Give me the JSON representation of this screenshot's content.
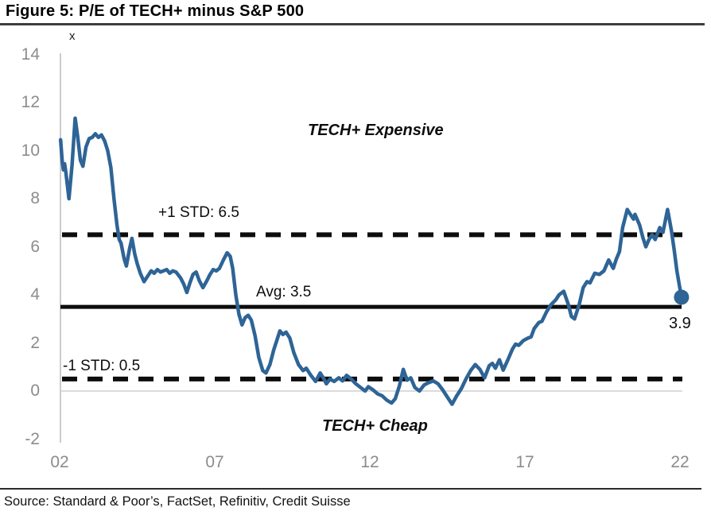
{
  "title": "Figure 5: P/E of TECH+ minus S&P 500",
  "source": "Source: Standard & Poor’s, FactSet, Refinitiv, Credit Suisse",
  "chart_data": {
    "type": "line",
    "title": "Figure 5: P/E of TECH+ minus S&P 500",
    "unit_label": "x",
    "xlabel": "",
    "ylabel": "",
    "grid": "zero-line only",
    "legend_position": "none",
    "xlim": [
      2002,
      2022.6
    ],
    "ylim": [
      -2,
      14
    ],
    "y_axis": {
      "ticks": [
        14,
        12,
        10,
        8,
        6,
        4,
        2,
        0,
        -2
      ]
    },
    "x_axis": {
      "ticks": [
        {
          "label": "02",
          "year": 2002
        },
        {
          "label": "07",
          "year": 2007
        },
        {
          "label": "12",
          "year": 2012
        },
        {
          "label": "17",
          "year": 2017
        },
        {
          "label": "22",
          "year": 2022
        }
      ]
    },
    "reference_lines": {
      "plus1_std": {
        "label": "+1 STD: 6.5",
        "value": 6.5,
        "style": "dashed"
      },
      "avg": {
        "label": "Avg: 3.5",
        "value": 3.5,
        "style": "solid"
      },
      "minus1_std": {
        "label": "-1 STD: 0.5",
        "value": 0.5,
        "style": "dashed"
      }
    },
    "annotations": {
      "upper_zone": "TECH+ Expensive",
      "lower_zone": "TECH+ Cheap",
      "last_value_label": "3.9"
    },
    "colors": {
      "line": "#2e6496",
      "marker": "#2e6496",
      "reference": "#0d0d0d",
      "axis": "#bcbcbc",
      "zero_line": "#cfcfcf",
      "tick_text": "#8c8c8c"
    },
    "series": [
      {
        "name": "P/E of TECH+ minus S&P 500 (x)",
        "last_value": 3.9,
        "points": [
          [
            2002.03,
            10.45
          ],
          [
            2002.08,
            9.6
          ],
          [
            2002.12,
            9.2
          ],
          [
            2002.16,
            9.45
          ],
          [
            2002.2,
            9.1
          ],
          [
            2002.3,
            8.0
          ],
          [
            2002.4,
            9.4
          ],
          [
            2002.5,
            11.35
          ],
          [
            2002.58,
            10.6
          ],
          [
            2002.67,
            9.6
          ],
          [
            2002.75,
            9.35
          ],
          [
            2002.85,
            10.15
          ],
          [
            2002.95,
            10.5
          ],
          [
            2003.05,
            10.55
          ],
          [
            2003.15,
            10.7
          ],
          [
            2003.25,
            10.55
          ],
          [
            2003.35,
            10.65
          ],
          [
            2003.45,
            10.4
          ],
          [
            2003.55,
            10.0
          ],
          [
            2003.65,
            9.3
          ],
          [
            2003.75,
            8.0
          ],
          [
            2003.85,
            6.9
          ],
          [
            2003.92,
            6.3
          ],
          [
            2003.98,
            6.15
          ],
          [
            2004.08,
            5.5
          ],
          [
            2004.15,
            5.2
          ],
          [
            2004.25,
            5.9
          ],
          [
            2004.33,
            6.35
          ],
          [
            2004.42,
            5.7
          ],
          [
            2004.5,
            5.3
          ],
          [
            2004.6,
            4.9
          ],
          [
            2004.72,
            4.55
          ],
          [
            2004.85,
            4.8
          ],
          [
            2004.95,
            5.0
          ],
          [
            2005.05,
            4.9
          ],
          [
            2005.15,
            5.05
          ],
          [
            2005.25,
            4.95
          ],
          [
            2005.35,
            5.0
          ],
          [
            2005.45,
            5.05
          ],
          [
            2005.55,
            4.9
          ],
          [
            2005.65,
            5.0
          ],
          [
            2005.75,
            4.95
          ],
          [
            2005.9,
            4.7
          ],
          [
            2006.0,
            4.45
          ],
          [
            2006.1,
            4.1
          ],
          [
            2006.2,
            4.5
          ],
          [
            2006.3,
            4.85
          ],
          [
            2006.4,
            4.95
          ],
          [
            2006.5,
            4.6
          ],
          [
            2006.62,
            4.3
          ],
          [
            2006.75,
            4.6
          ],
          [
            2006.85,
            4.85
          ],
          [
            2006.95,
            5.05
          ],
          [
            2007.05,
            5.0
          ],
          [
            2007.15,
            5.1
          ],
          [
            2007.28,
            5.45
          ],
          [
            2007.4,
            5.75
          ],
          [
            2007.5,
            5.6
          ],
          [
            2007.58,
            5.1
          ],
          [
            2007.68,
            4.0
          ],
          [
            2007.78,
            3.2
          ],
          [
            2007.88,
            2.75
          ],
          [
            2007.98,
            3.05
          ],
          [
            2008.08,
            3.15
          ],
          [
            2008.18,
            2.95
          ],
          [
            2008.3,
            2.3
          ],
          [
            2008.42,
            1.4
          ],
          [
            2008.55,
            0.85
          ],
          [
            2008.65,
            0.75
          ],
          [
            2008.78,
            1.1
          ],
          [
            2008.9,
            1.7
          ],
          [
            2009.0,
            2.1
          ],
          [
            2009.1,
            2.5
          ],
          [
            2009.2,
            2.35
          ],
          [
            2009.3,
            2.45
          ],
          [
            2009.42,
            2.2
          ],
          [
            2009.55,
            1.6
          ],
          [
            2009.7,
            1.1
          ],
          [
            2009.85,
            0.85
          ],
          [
            2009.95,
            0.95
          ],
          [
            2010.1,
            0.65
          ],
          [
            2010.25,
            0.4
          ],
          [
            2010.4,
            0.75
          ],
          [
            2010.5,
            0.55
          ],
          [
            2010.6,
            0.3
          ],
          [
            2010.72,
            0.5
          ],
          [
            2010.85,
            0.4
          ],
          [
            2011.0,
            0.55
          ],
          [
            2011.12,
            0.42
          ],
          [
            2011.25,
            0.65
          ],
          [
            2011.4,
            0.5
          ],
          [
            2011.55,
            0.3
          ],
          [
            2011.7,
            0.15
          ],
          [
            2011.85,
            0.0
          ],
          [
            2011.95,
            0.18
          ],
          [
            2012.1,
            0.05
          ],
          [
            2012.25,
            -0.12
          ],
          [
            2012.4,
            -0.2
          ],
          [
            2012.55,
            -0.38
          ],
          [
            2012.7,
            -0.5
          ],
          [
            2012.82,
            -0.32
          ],
          [
            2012.95,
            0.2
          ],
          [
            2013.08,
            0.9
          ],
          [
            2013.2,
            0.45
          ],
          [
            2013.32,
            0.55
          ],
          [
            2013.45,
            0.15
          ],
          [
            2013.6,
            0.0
          ],
          [
            2013.75,
            0.25
          ],
          [
            2013.9,
            0.35
          ],
          [
            2014.05,
            0.42
          ],
          [
            2014.2,
            0.3
          ],
          [
            2014.35,
            0.05
          ],
          [
            2014.5,
            -0.25
          ],
          [
            2014.65,
            -0.55
          ],
          [
            2014.8,
            -0.2
          ],
          [
            2014.95,
            0.1
          ],
          [
            2015.1,
            0.5
          ],
          [
            2015.25,
            0.85
          ],
          [
            2015.4,
            1.1
          ],
          [
            2015.55,
            0.9
          ],
          [
            2015.7,
            0.55
          ],
          [
            2015.85,
            1.05
          ],
          [
            2015.95,
            1.15
          ],
          [
            2016.05,
            0.95
          ],
          [
            2016.18,
            1.3
          ],
          [
            2016.3,
            0.87
          ],
          [
            2016.45,
            1.3
          ],
          [
            2016.6,
            1.75
          ],
          [
            2016.7,
            1.95
          ],
          [
            2016.8,
            1.9
          ],
          [
            2016.95,
            2.1
          ],
          [
            2017.1,
            2.2
          ],
          [
            2017.2,
            2.25
          ],
          [
            2017.3,
            2.6
          ],
          [
            2017.45,
            2.85
          ],
          [
            2017.55,
            2.9
          ],
          [
            2017.7,
            3.3
          ],
          [
            2017.85,
            3.6
          ],
          [
            2018.0,
            3.8
          ],
          [
            2018.1,
            4.0
          ],
          [
            2018.25,
            4.15
          ],
          [
            2018.4,
            3.6
          ],
          [
            2018.5,
            3.1
          ],
          [
            2018.6,
            3.0
          ],
          [
            2018.75,
            3.6
          ],
          [
            2018.88,
            4.3
          ],
          [
            2019.0,
            4.55
          ],
          [
            2019.1,
            4.5
          ],
          [
            2019.25,
            4.9
          ],
          [
            2019.4,
            4.85
          ],
          [
            2019.55,
            5.0
          ],
          [
            2019.7,
            5.45
          ],
          [
            2019.85,
            5.1
          ],
          [
            2019.95,
            5.5
          ],
          [
            2020.05,
            5.8
          ],
          [
            2020.15,
            6.8
          ],
          [
            2020.3,
            7.55
          ],
          [
            2020.4,
            7.35
          ],
          [
            2020.5,
            7.15
          ],
          [
            2020.55,
            7.35
          ],
          [
            2020.7,
            6.9
          ],
          [
            2020.8,
            6.4
          ],
          [
            2020.9,
            6.0
          ],
          [
            2021.0,
            6.3
          ],
          [
            2021.1,
            6.5
          ],
          [
            2021.2,
            6.3
          ],
          [
            2021.35,
            6.8
          ],
          [
            2021.45,
            6.6
          ],
          [
            2021.6,
            7.55
          ],
          [
            2021.72,
            6.7
          ],
          [
            2021.82,
            5.8
          ],
          [
            2021.9,
            5.0
          ],
          [
            2021.98,
            4.4
          ],
          [
            2022.05,
            3.9
          ]
        ]
      }
    ]
  }
}
